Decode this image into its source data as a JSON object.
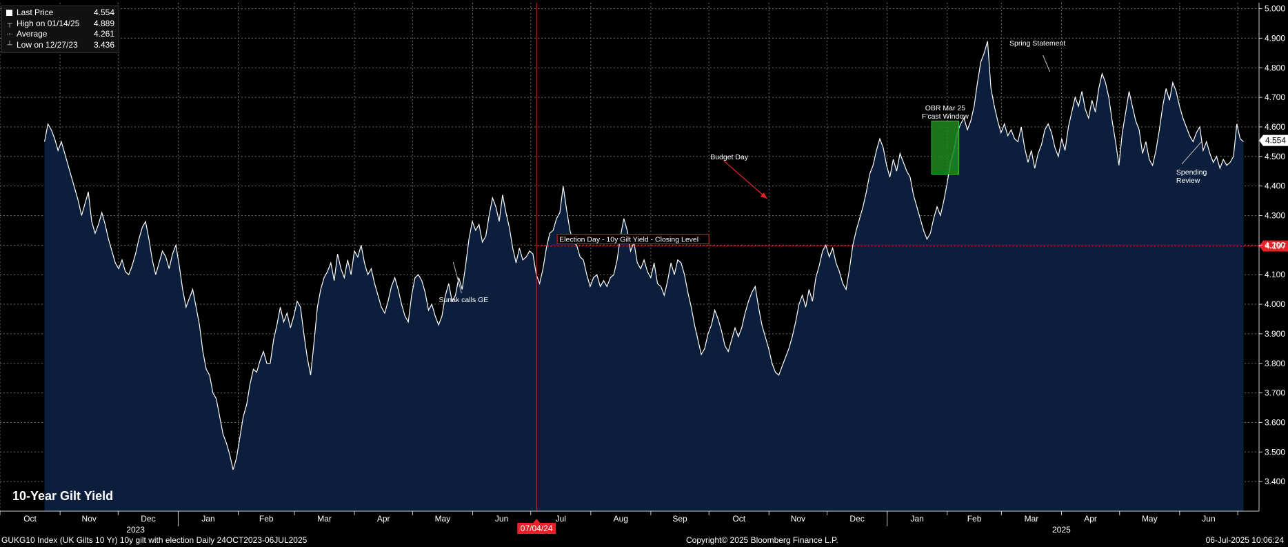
{
  "chart_data": {
    "type": "area",
    "title": "10-Year Gilt Yield",
    "ylim": [
      3.3,
      5.02
    ],
    "yticks": [
      "3.400",
      "3.500",
      "3.600",
      "3.700",
      "3.800",
      "3.900",
      "4.000",
      "4.100",
      "4.200",
      "4.300",
      "4.400",
      "4.500",
      "4.600",
      "4.700",
      "4.800",
      "4.900",
      "5.000"
    ],
    "xticks": [
      "Oct",
      "Nov",
      "Dec",
      "Jan",
      "Feb",
      "Mar",
      "Apr",
      "May",
      "Jun",
      "Jul",
      "Aug",
      "Sep",
      "Oct",
      "Nov",
      "Dec",
      "Jan",
      "Feb",
      "Mar",
      "Apr",
      "May",
      "Jun"
    ],
    "years": [
      "2023",
      "2025"
    ],
    "grid": true,
    "legend_position": "top-left",
    "series": [
      {
        "date_range": [
          "2023-10-24",
          "2025-07-04"
        ],
        "values": [
          4.55,
          4.61,
          4.59,
          4.56,
          4.52,
          4.55,
          4.51,
          4.47,
          4.43,
          4.39,
          4.35,
          4.3,
          4.34,
          4.38,
          4.28,
          4.24,
          4.27,
          4.31,
          4.27,
          4.22,
          4.18,
          4.14,
          4.12,
          4.15,
          4.11,
          4.1,
          4.13,
          4.17,
          4.22,
          4.26,
          4.28,
          4.22,
          4.15,
          4.1,
          4.14,
          4.18,
          4.16,
          4.12,
          4.17,
          4.2,
          4.13,
          4.05,
          3.99,
          4.02,
          4.05,
          3.99,
          3.93,
          3.84,
          3.78,
          3.76,
          3.7,
          3.68,
          3.62,
          3.56,
          3.53,
          3.49,
          3.44,
          3.48,
          3.55,
          3.62,
          3.66,
          3.73,
          3.78,
          3.77,
          3.81,
          3.84,
          3.8,
          3.8,
          3.88,
          3.93,
          3.99,
          3.94,
          3.97,
          3.92,
          3.96,
          4.01,
          3.99,
          3.9,
          3.82,
          3.76,
          3.87,
          3.99,
          4.05,
          4.09,
          4.11,
          4.14,
          4.08,
          4.17,
          4.12,
          4.09,
          4.15,
          4.1,
          4.18,
          4.16,
          4.2,
          4.14,
          4.1,
          4.12,
          4.07,
          4.03,
          3.99,
          3.97,
          4.01,
          4.06,
          4.09,
          4.05,
          4.0,
          3.96,
          3.94,
          4.03,
          4.09,
          4.1,
          4.08,
          4.04,
          3.98,
          4.0,
          3.96,
          3.93,
          3.96,
          4.03,
          4.07,
          4.01,
          4.03,
          4.09,
          4.05,
          4.13,
          4.22,
          4.28,
          4.25,
          4.27,
          4.21,
          4.23,
          4.3,
          4.36,
          4.33,
          4.28,
          4.37,
          4.31,
          4.26,
          4.19,
          4.14,
          4.19,
          4.15,
          4.16,
          4.18,
          4.17,
          4.1,
          4.07,
          4.12,
          4.19,
          4.24,
          4.25,
          4.29,
          4.31,
          4.4,
          4.32,
          4.25,
          4.21,
          4.2,
          4.16,
          4.15,
          4.1,
          4.06,
          4.09,
          4.1,
          4.06,
          4.08,
          4.06,
          4.09,
          4.1,
          4.15,
          4.23,
          4.29,
          4.25,
          4.18,
          4.21,
          4.14,
          4.12,
          4.15,
          4.11,
          4.09,
          4.14,
          4.07,
          4.06,
          4.03,
          4.08,
          4.14,
          4.1,
          4.15,
          4.14,
          4.1,
          4.04,
          3.99,
          3.93,
          3.88,
          3.83,
          3.85,
          3.9,
          3.93,
          3.98,
          3.95,
          3.91,
          3.86,
          3.84,
          3.88,
          3.92,
          3.89,
          3.92,
          3.97,
          4.01,
          4.04,
          4.06,
          3.99,
          3.93,
          3.89,
          3.85,
          3.8,
          3.77,
          3.76,
          3.79,
          3.82,
          3.85,
          3.89,
          3.94,
          4.0,
          4.03,
          3.99,
          4.05,
          4.01,
          4.09,
          4.13,
          4.18,
          4.2,
          4.16,
          4.19,
          4.14,
          4.11,
          4.07,
          4.05,
          4.12,
          4.2,
          4.25,
          4.29,
          4.33,
          4.38,
          4.44,
          4.47,
          4.52,
          4.56,
          4.53,
          4.47,
          4.43,
          4.49,
          4.45,
          4.51,
          4.48,
          4.45,
          4.43,
          4.37,
          4.33,
          4.29,
          4.25,
          4.22,
          4.24,
          4.29,
          4.33,
          4.3,
          4.35,
          4.41,
          4.48,
          4.52,
          4.58,
          4.61,
          4.63,
          4.59,
          4.62,
          4.67,
          4.75,
          4.82,
          4.85,
          4.89,
          4.73,
          4.67,
          4.62,
          4.58,
          4.61,
          4.57,
          4.59,
          4.56,
          4.55,
          4.6,
          4.53,
          4.48,
          4.52,
          4.46,
          4.51,
          4.54,
          4.59,
          4.61,
          4.58,
          4.53,
          4.5,
          4.56,
          4.52,
          4.6,
          4.65,
          4.7,
          4.67,
          4.72,
          4.66,
          4.63,
          4.69,
          4.65,
          4.73,
          4.78,
          4.75,
          4.7,
          4.62,
          4.55,
          4.47,
          4.58,
          4.65,
          4.72,
          4.67,
          4.62,
          4.59,
          4.51,
          4.55,
          4.49,
          4.47,
          4.52,
          4.59,
          4.67,
          4.73,
          4.69,
          4.75,
          4.72,
          4.67,
          4.63,
          4.6,
          4.57,
          4.55,
          4.58,
          4.6,
          4.52,
          4.55,
          4.51,
          4.48,
          4.5,
          4.46,
          4.49,
          4.47,
          4.48,
          4.5,
          4.61,
          4.56,
          4.55
        ]
      }
    ],
    "annotations": [
      {
        "text": "Sunak calls GE",
        "date": "2024-05-22"
      },
      {
        "text": "Election Day - 10y Gilt Yield - Closing Level",
        "value": 4.197,
        "date": "2024-07-04"
      },
      {
        "text": "Budget Day",
        "date": "2024-10-30"
      },
      {
        "text": "OBR Mar 25",
        "text2": "F'cast Window",
        "from": "2025-01-24",
        "to": "2025-02-07"
      },
      {
        "text": "Spring Statement",
        "date": "2025-03-26"
      },
      {
        "text": "Spending",
        "text2": "Review",
        "date": "2025-06-11"
      }
    ],
    "last_price_label": "4.554",
    "election_level_label": "4.197",
    "election_date_label": "07/04/24"
  },
  "legend": {
    "items": [
      {
        "label": "Last Price",
        "value": "4.554"
      },
      {
        "label": "High on 01/14/25",
        "value": "4.889"
      },
      {
        "label": "Average",
        "value": "4.261"
      },
      {
        "label": "Low on 12/27/23",
        "value": "3.436"
      }
    ]
  },
  "footer": {
    "left": "GUKG10 Index (UK Gilts 10 Yr) 10y gilt with election  Daily 24OCT2023-06JUL2025",
    "center": "Copyright© 2025 Bloomberg Finance L.P.",
    "right": "06-Jul-2025 10:06:24"
  },
  "colors": {
    "background": "#000000",
    "area": "#0b1f3c",
    "line": "#ffffff",
    "election": "#e0242a",
    "forecast_window": "#1f8a1f",
    "grid": "#6b6b6b",
    "label_box": "#ffffff"
  }
}
